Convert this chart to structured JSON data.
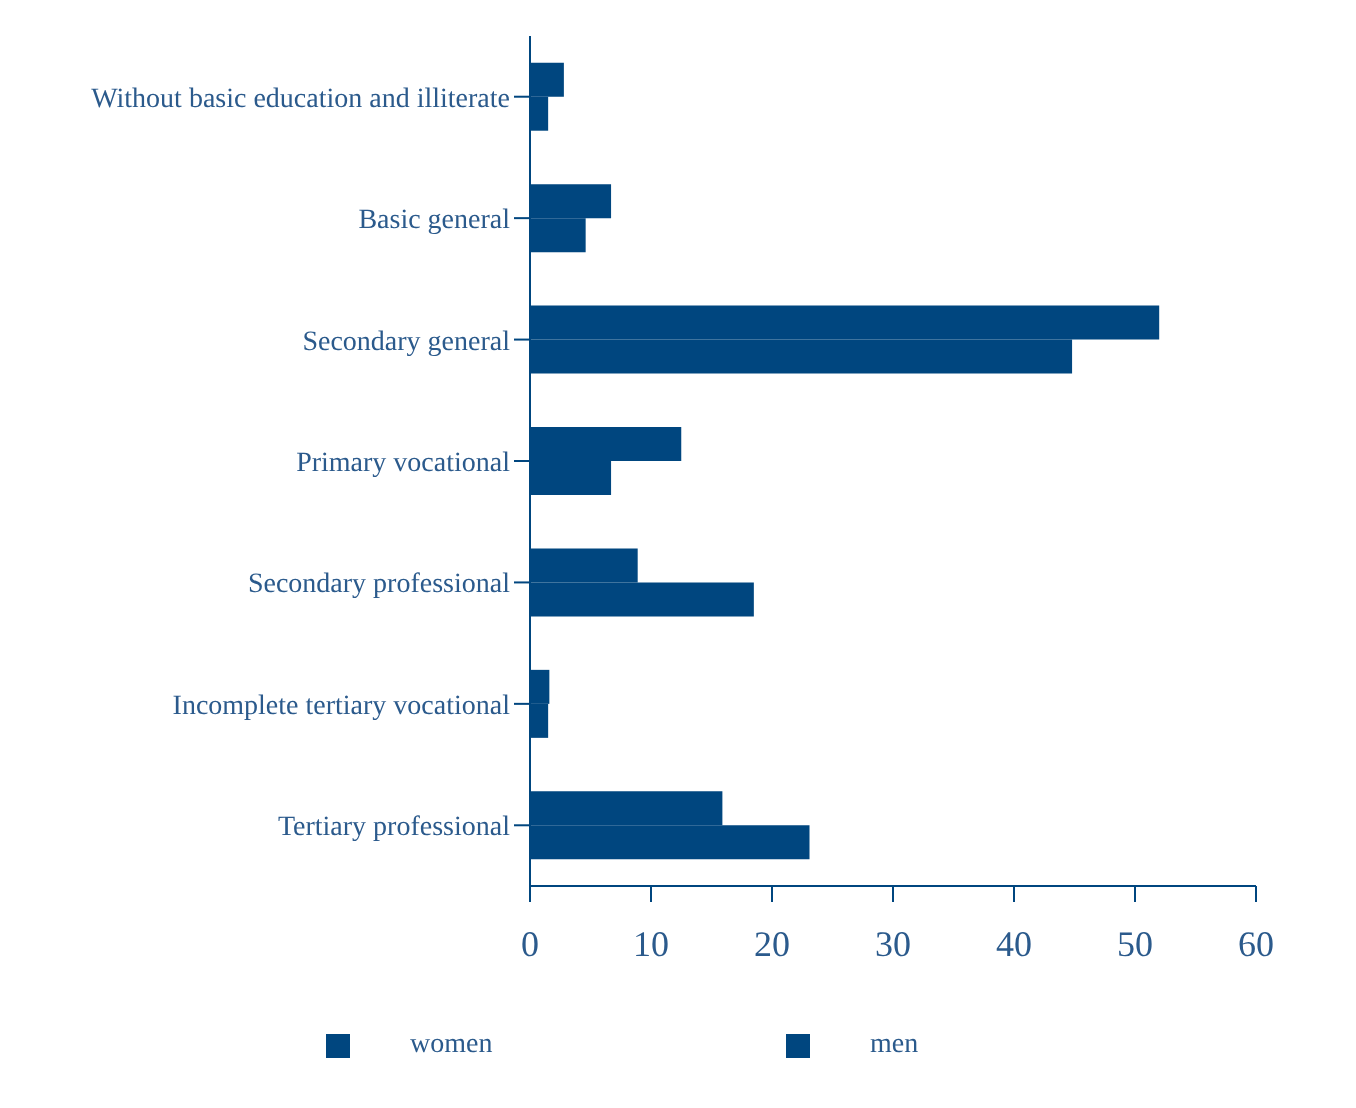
{
  "chart_data": {
    "type": "bar",
    "orientation": "horizontal",
    "categories": [
      "Without basic education and illiterate",
      "Basic general",
      "Secondary general",
      "Primary vocational",
      "Secondary professional",
      "Incomplete tertiary vocational",
      "Tertiary professional"
    ],
    "series": [
      {
        "name": "women",
        "color": "#00467f",
        "values": [
          2.8,
          6.7,
          52,
          12.5,
          8.9,
          1.6,
          15.9
        ]
      },
      {
        "name": "men",
        "color": "#00467f",
        "values": [
          1.5,
          4.6,
          44.8,
          6.7,
          18.5,
          1.5,
          23.1
        ]
      }
    ],
    "xlim": [
      0,
      60
    ],
    "xticks": [
      0,
      10,
      20,
      30,
      40,
      50,
      60
    ],
    "legend": "bottom"
  }
}
